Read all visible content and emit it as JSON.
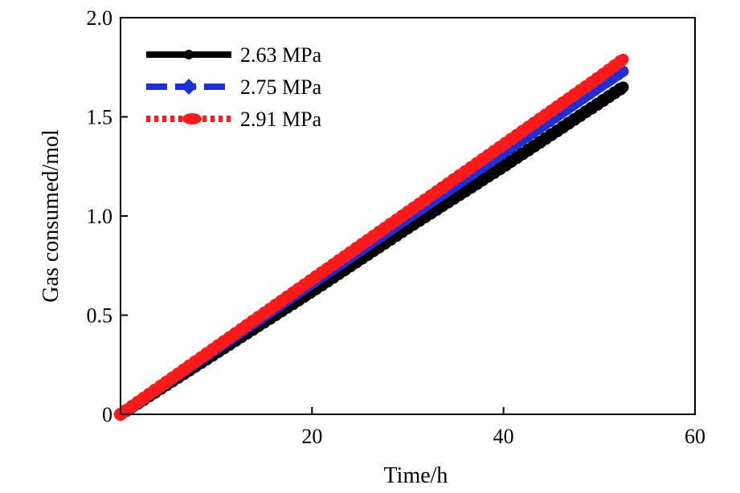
{
  "chart_data": {
    "type": "line",
    "title": "",
    "xlabel": "Time/h",
    "ylabel": "Gas consumed/mol",
    "xlim": [
      0,
      60
    ],
    "ylim": [
      0,
      2.0
    ],
    "xticks": [
      20,
      40,
      60
    ],
    "yticks": [
      0,
      0.5,
      1.0,
      1.5,
      2.0
    ],
    "xtick_labels": [
      "20",
      "40",
      "60"
    ],
    "ytick_labels": [
      "0",
      "0.5",
      "1.0",
      "1.5",
      "2.0"
    ],
    "legend_position": "top-left",
    "grid": false,
    "series": [
      {
        "name": "2.63 MPa",
        "color": "#000000",
        "line_style": "solid",
        "marker": "circle",
        "x": [
          0,
          10,
          20,
          30,
          40,
          50,
          52.5
        ],
        "y": [
          0,
          0.31,
          0.62,
          0.94,
          1.25,
          1.57,
          1.65
        ]
      },
      {
        "name": "2.75 MPa",
        "color": "#1f2fd6",
        "line_style": "dashed",
        "marker": "diamond",
        "x": [
          0,
          10,
          20,
          30,
          40,
          50,
          52.5
        ],
        "y": [
          0,
          0.33,
          0.66,
          0.99,
          1.32,
          1.65,
          1.73
        ]
      },
      {
        "name": "2.91 MPa",
        "color": "#ff1a1a",
        "line_style": "dotted",
        "marker": "circle",
        "x": [
          0,
          10,
          20,
          30,
          40,
          50,
          52.5
        ],
        "y": [
          0,
          0.34,
          0.68,
          1.02,
          1.36,
          1.7,
          1.79
        ]
      }
    ]
  }
}
